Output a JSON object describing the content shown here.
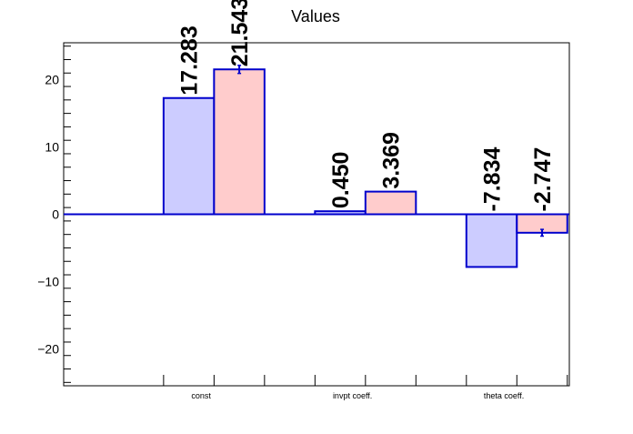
{
  "chart_data": {
    "type": "bar",
    "title": "Values",
    "xlabel": "",
    "ylabel": "",
    "categories": [
      "const",
      "invpt coeff.",
      "theta coeff."
    ],
    "ylim": [
      -25.5,
      25.5
    ],
    "yticks": [
      -20,
      -10,
      0,
      10,
      20
    ],
    "ytick_labels": [
      "−20",
      "−10",
      "0",
      "10",
      "20"
    ],
    "grid": false,
    "legend": "none",
    "series": [
      {
        "values": [
          17.283,
          0.45,
          -7.834
        ],
        "labels": [
          "17.283",
          "0.450",
          "-7.834"
        ],
        "errors": [
          0,
          0,
          0
        ],
        "fill": "#ccccff",
        "stroke": "#0000cc"
      },
      {
        "values": [
          21.543,
          3.369,
          -2.747
        ],
        "labels": [
          "21.543",
          "3.369",
          "-2.747"
        ],
        "errors": [
          0.6,
          0,
          0.5
        ],
        "fill": "#ffcccc",
        "stroke": "#0000cc"
      }
    ],
    "colors": {
      "axis": "#000000",
      "zero_line": "#0000cc",
      "bar_edge": "#0000cc"
    }
  }
}
